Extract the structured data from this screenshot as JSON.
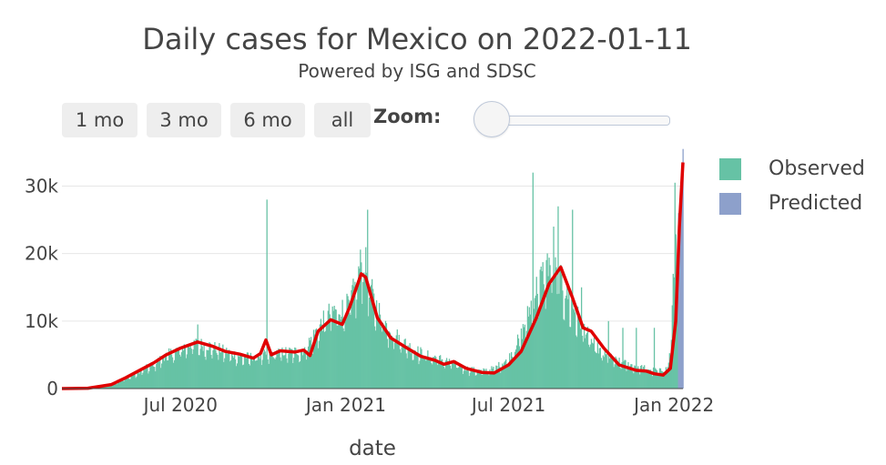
{
  "chart_data": {
    "type": "bar",
    "title": "Daily cases for Mexico on 2022-01-11",
    "subtitle": "Powered by ISG and SDSC",
    "xlabel": "date",
    "ylabel": "",
    "ylim": [
      0,
      36000
    ],
    "y_ticks": [
      0,
      10000,
      20000,
      30000
    ],
    "y_tick_labels": [
      "0",
      "10k",
      "20k",
      "30k"
    ],
    "x_ticks": [
      "2020-07-01",
      "2021-01-01",
      "2021-07-01",
      "2022-01-01"
    ],
    "x_tick_labels": [
      "Jul 2020",
      "Jan 2021",
      "Jul 2021",
      "Jan 2022"
    ],
    "x_range": [
      "2020-02-20",
      "2022-01-11"
    ],
    "observed_end": "2022-01-05",
    "legend": [
      "Observed",
      "Predicted"
    ],
    "colors": {
      "observed": "#66c2a5",
      "predicted": "#8da0cb",
      "smoothed": "#e00000",
      "grid": "#e6e6e6"
    },
    "observed_anchors": [
      [
        "2020-02-20",
        0
      ],
      [
        "2020-03-15",
        50
      ],
      [
        "2020-04-01",
        200
      ],
      [
        "2020-04-15",
        600
      ],
      [
        "2020-05-01",
        1600
      ],
      [
        "2020-05-15",
        2500
      ],
      [
        "2020-06-01",
        3700
      ],
      [
        "2020-06-15",
        5000
      ],
      [
        "2020-07-01",
        6000
      ],
      [
        "2020-07-15",
        6800
      ],
      [
        "2020-08-01",
        6400
      ],
      [
        "2020-08-15",
        5800
      ],
      [
        "2020-09-01",
        5000
      ],
      [
        "2020-09-15",
        4700
      ],
      [
        "2020-10-01",
        5000
      ],
      [
        "2020-10-15",
        5400
      ],
      [
        "2020-11-01",
        5500
      ],
      [
        "2020-11-15",
        5700
      ],
      [
        "2020-12-01",
        9000
      ],
      [
        "2020-12-15",
        11500
      ],
      [
        "2021-01-01",
        12000
      ],
      [
        "2021-01-10",
        14500
      ],
      [
        "2021-01-20",
        20000
      ],
      [
        "2021-02-01",
        13000
      ],
      [
        "2021-02-15",
        9500
      ],
      [
        "2021-03-01",
        7500
      ],
      [
        "2021-03-15",
        6000
      ],
      [
        "2021-04-01",
        5000
      ],
      [
        "2021-04-15",
        4500
      ],
      [
        "2021-05-01",
        3800
      ],
      [
        "2021-05-15",
        3000
      ],
      [
        "2021-06-01",
        2600
      ],
      [
        "2021-06-15",
        3000
      ],
      [
        "2021-07-01",
        4500
      ],
      [
        "2021-07-15",
        8000
      ],
      [
        "2021-08-01",
        15000
      ],
      [
        "2021-08-15",
        19000
      ],
      [
        "2021-09-01",
        15000
      ],
      [
        "2021-09-15",
        11000
      ],
      [
        "2021-10-01",
        7000
      ],
      [
        "2021-10-15",
        5000
      ],
      [
        "2021-11-01",
        4000
      ],
      [
        "2021-11-15",
        3500
      ],
      [
        "2021-12-01",
        3000
      ],
      [
        "2021-12-15",
        2600
      ],
      [
        "2021-12-25",
        3000
      ],
      [
        "2021-12-28",
        6000
      ],
      [
        "2022-01-01",
        18000
      ],
      [
        "2022-01-05",
        28000
      ]
    ],
    "observed_spikes": [
      [
        "2020-10-05",
        28000
      ],
      [
        "2021-01-25",
        26500
      ],
      [
        "2021-07-28",
        32000
      ],
      [
        "2021-08-25",
        27000
      ],
      [
        "2021-09-10",
        26500
      ],
      [
        "2021-08-20",
        24000
      ],
      [
        "2021-09-20",
        15000
      ],
      [
        "2021-10-20",
        10000
      ],
      [
        "2021-11-05",
        9000
      ],
      [
        "2021-11-20",
        9000
      ],
      [
        "2021-12-10",
        9000
      ],
      [
        "2020-07-20",
        9500
      ],
      [
        "2022-01-02",
        30500
      ]
    ],
    "predicted": [
      [
        "2022-01-06",
        26000
      ],
      [
        "2022-01-07",
        26000
      ],
      [
        "2022-01-08",
        28000
      ],
      [
        "2022-01-09",
        31000
      ],
      [
        "2022-01-10",
        33000
      ],
      [
        "2022-01-11",
        35500
      ]
    ],
    "smoothed": [
      [
        "2020-02-20",
        0
      ],
      [
        "2020-03-20",
        50
      ],
      [
        "2020-04-15",
        600
      ],
      [
        "2020-05-01",
        1600
      ],
      [
        "2020-05-15",
        2600
      ],
      [
        "2020-06-01",
        3800
      ],
      [
        "2020-06-15",
        5000
      ],
      [
        "2020-07-01",
        6000
      ],
      [
        "2020-07-20",
        6900
      ],
      [
        "2020-08-05",
        6300
      ],
      [
        "2020-08-20",
        5500
      ],
      [
        "2020-09-05",
        5100
      ],
      [
        "2020-09-20",
        4500
      ],
      [
        "2020-09-28",
        5200
      ],
      [
        "2020-10-04",
        7200
      ],
      [
        "2020-10-10",
        5000
      ],
      [
        "2020-10-20",
        5600
      ],
      [
        "2020-11-05",
        5400
      ],
      [
        "2020-11-15",
        5700
      ],
      [
        "2020-11-22",
        4900
      ],
      [
        "2020-12-01",
        8500
      ],
      [
        "2020-12-15",
        10200
      ],
      [
        "2020-12-28",
        9500
      ],
      [
        "2021-01-05",
        12000
      ],
      [
        "2021-01-18",
        17000
      ],
      [
        "2021-01-23",
        16500
      ],
      [
        "2021-02-05",
        10500
      ],
      [
        "2021-02-20",
        7500
      ],
      [
        "2021-03-10",
        6000
      ],
      [
        "2021-03-25",
        4800
      ],
      [
        "2021-04-10",
        4200
      ],
      [
        "2021-04-20",
        3600
      ],
      [
        "2021-05-01",
        4000
      ],
      [
        "2021-05-15",
        3000
      ],
      [
        "2021-06-01",
        2400
      ],
      [
        "2021-06-15",
        2300
      ],
      [
        "2021-07-01",
        3500
      ],
      [
        "2021-07-15",
        5500
      ],
      [
        "2021-08-01",
        10500
      ],
      [
        "2021-08-15",
        15500
      ],
      [
        "2021-08-28",
        18000
      ],
      [
        "2021-09-10",
        13500
      ],
      [
        "2021-09-22",
        9000
      ],
      [
        "2021-10-01",
        8500
      ],
      [
        "2021-10-15",
        6000
      ],
      [
        "2021-11-01",
        3500
      ],
      [
        "2021-11-20",
        2700
      ],
      [
        "2021-12-01",
        2600
      ],
      [
        "2021-12-10",
        2200
      ],
      [
        "2021-12-20",
        2000
      ],
      [
        "2021-12-28",
        3000
      ],
      [
        "2022-01-03",
        10000
      ],
      [
        "2022-01-07",
        24000
      ],
      [
        "2022-01-11",
        33500
      ]
    ]
  },
  "range_buttons": [
    "1 mo",
    "3 mo",
    "6 mo",
    "all"
  ],
  "zoom_label": "Zoom:"
}
